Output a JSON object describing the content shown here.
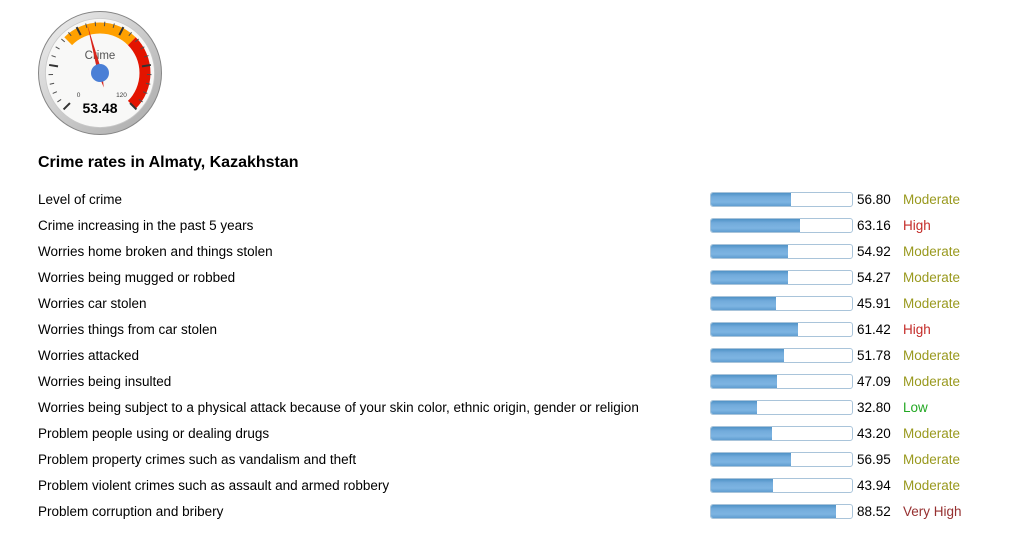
{
  "heading": "Crime rates in Almaty, Kazakhstan",
  "chart_data": [
    {
      "type": "gauge",
      "label": "Crime",
      "value": 53.48,
      "value_label": "53.48",
      "min": 0,
      "max": 120,
      "zones": [
        {
          "from": 40,
          "to": 80,
          "color": "#FFA000"
        },
        {
          "from": 80,
          "to": 120,
          "color": "#E31400"
        }
      ],
      "needle_color": "#D8251C",
      "hub_color": "#4A7FD6"
    },
    {
      "type": "bar",
      "title": "Crime rates in Almaty, Kazakhstan",
      "orientation": "horizontal",
      "xlim": [
        0,
        100
      ],
      "bar_color": "#6FA8D8",
      "categories": [
        "Level of crime",
        "Crime increasing in the past 5 years",
        "Worries home broken and things stolen",
        "Worries being mugged or robbed",
        "Worries car stolen",
        "Worries things from car stolen",
        "Worries attacked",
        "Worries being insulted",
        "Worries being subject to a physical attack because of your skin color, ethnic origin, gender or religion",
        "Problem people using or dealing drugs",
        "Problem property crimes such as vandalism and theft",
        "Problem violent crimes such as assault and armed robbery",
        "Problem corruption and bribery"
      ],
      "values": [
        56.8,
        63.16,
        54.92,
        54.27,
        45.91,
        61.42,
        51.78,
        47.09,
        32.8,
        43.2,
        56.95,
        43.94,
        88.52
      ],
      "value_labels": [
        "56.80",
        "63.16",
        "54.92",
        "54.27",
        "45.91",
        "61.42",
        "51.78",
        "47.09",
        "32.80",
        "43.20",
        "56.95",
        "43.94",
        "88.52"
      ],
      "ratings": [
        "Moderate",
        "High",
        "Moderate",
        "Moderate",
        "Moderate",
        "High",
        "Moderate",
        "Moderate",
        "Low",
        "Moderate",
        "Moderate",
        "Moderate",
        "Very High"
      ]
    }
  ],
  "rating_colors": {
    "Low": "#23A823",
    "Moderate": "#99991E",
    "High": "#C42B28",
    "Very High": "#963030"
  }
}
